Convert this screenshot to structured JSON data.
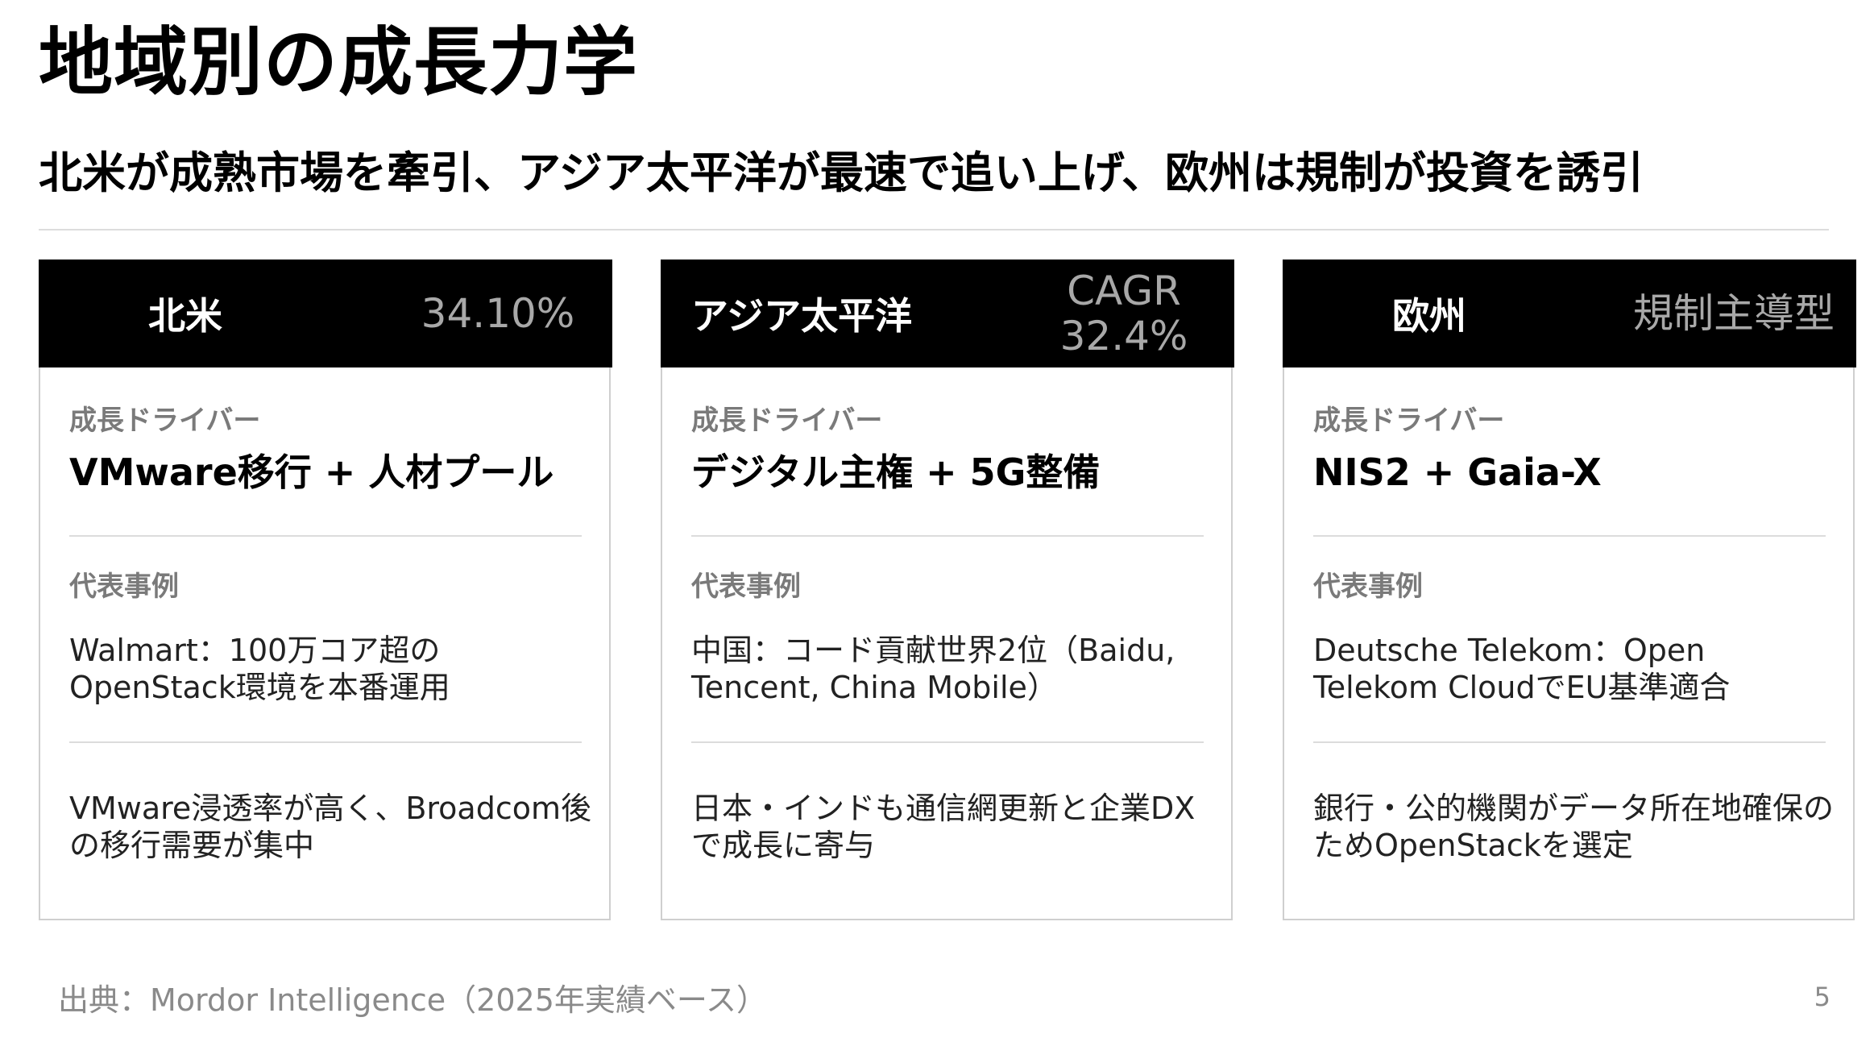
{
  "title": "地域別の成長力学",
  "subtitle": "北米が成熟市場を牽引、アジア太平洋が最速で追い上げ、欧州は規制が投資を誘引",
  "cards": [
    {
      "region": "北米",
      "metric": "34.10%",
      "driver_label": "成長ドライバー",
      "driver": "VMware移行 + 人材プール",
      "example_label": "代表事例",
      "example": "Walmart：100万コア超のOpenStack環境を本番運用",
      "note": "VMware浸透率が高く、Broadcom後の移行需要が集中"
    },
    {
      "region": "アジア太平洋",
      "metric": "CAGR\n32.4%",
      "driver_label": "成長ドライバー",
      "driver": "デジタル主権 + 5G整備",
      "example_label": "代表事例",
      "example": "中国：コード貢献世界2位（Baidu, Tencent, China Mobile）",
      "note": "日本・インドも通信網更新と企業DXで成長に寄与"
    },
    {
      "region": "欧州",
      "metric": "規制主導型",
      "driver_label": "成長ドライバー",
      "driver": "NIS2 + Gaia-X",
      "example_label": "代表事例",
      "example": "Deutsche Telekom：Open Telekom CloudでEU基準適合",
      "note": "銀行・公的機関がデータ所在地確保のためOpenStackを選定"
    }
  ],
  "source": "出典：Mordor Intelligence（2025年実績ベース）",
  "page_number": "5",
  "colors": {
    "header_bg": "#000000",
    "metric_text": "#a8a8a8",
    "label_text": "#7a7a7a",
    "border": "#cfcfcf"
  }
}
